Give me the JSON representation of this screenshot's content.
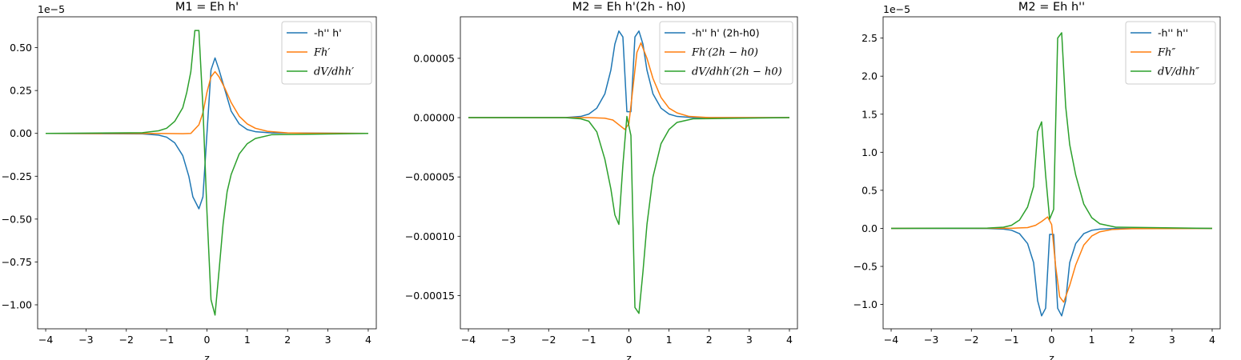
{
  "chart_data": [
    {
      "type": "line",
      "title": "M1 = Eh h'",
      "xlabel": "z",
      "ylabel": "",
      "offset_text": "1e−5",
      "xlim": [
        -4.2,
        4.2
      ],
      "ylim": [
        -1.14,
        0.68
      ],
      "x_ticks": [
        -4,
        -3,
        -2,
        -1,
        0,
        1,
        2,
        3,
        4
      ],
      "x_tick_labels": [
        "−4",
        "−3",
        "−2",
        "−1",
        "0",
        "1",
        "2",
        "3",
        "4"
      ],
      "y_ticks": [
        -1.0,
        -0.75,
        -0.5,
        -0.25,
        0.0,
        0.25,
        0.5
      ],
      "y_tick_labels": [
        "−1.00",
        "−0.75",
        "−0.50",
        "−0.25",
        "0.00",
        "0.25",
        "0.50"
      ],
      "legend_position": "top-right",
      "grid": false,
      "series": [
        {
          "name": "-h'' h'",
          "legend_style": "plain",
          "color": "#1f77b4",
          "x": [
            -4,
            -1.6,
            -1.2,
            -1.0,
            -0.8,
            -0.6,
            -0.45,
            -0.35,
            -0.2,
            -0.1,
            0.0,
            0.1,
            0.2,
            0.3,
            0.45,
            0.6,
            0.8,
            1.0,
            1.2,
            1.6,
            4
          ],
          "y": [
            0,
            -0.003,
            -0.01,
            -0.022,
            -0.055,
            -0.13,
            -0.25,
            -0.37,
            -0.44,
            -0.37,
            0.0,
            0.37,
            0.44,
            0.37,
            0.25,
            0.13,
            0.055,
            0.022,
            0.01,
            0.003,
            0
          ]
        },
        {
          "name": "Fh′",
          "legend_style": "italic",
          "color": "#ff7f0e",
          "x": [
            -4,
            -1.0,
            -0.6,
            -0.4,
            -0.2,
            -0.1,
            0.0,
            0.1,
            0.2,
            0.3,
            0.45,
            0.6,
            0.8,
            1.0,
            1.2,
            1.5,
            2.0,
            2.5,
            4
          ],
          "y": [
            0,
            -0.001,
            -0.002,
            0.0,
            0.05,
            0.12,
            0.24,
            0.33,
            0.36,
            0.33,
            0.26,
            0.18,
            0.1,
            0.055,
            0.03,
            0.012,
            0.003,
            0.001,
            0
          ]
        },
        {
          "name": "dV/dhh′",
          "legend_style": "italic",
          "color": "#2ca02c",
          "x": [
            -4,
            -1.6,
            -1.2,
            -1.0,
            -0.8,
            -0.6,
            -0.5,
            -0.4,
            -0.3,
            -0.2,
            -0.1,
            0.0,
            0.1,
            0.2,
            0.3,
            0.4,
            0.5,
            0.6,
            0.8,
            1.0,
            1.2,
            1.6,
            4
          ],
          "y": [
            0,
            0.004,
            0.015,
            0.03,
            0.07,
            0.15,
            0.24,
            0.36,
            0.6,
            0.6,
            0.15,
            -0.46,
            -0.97,
            -1.06,
            -0.8,
            -0.53,
            -0.34,
            -0.24,
            -0.12,
            -0.06,
            -0.03,
            -0.008,
            0
          ]
        }
      ]
    },
    {
      "type": "line",
      "title": "M2 = Eh h'(2h - h0)",
      "xlabel": "z",
      "ylabel": "",
      "offset_text": "",
      "xlim": [
        -4.2,
        4.2
      ],
      "ylim": [
        -0.000178,
        8.5e-05
      ],
      "x_ticks": [
        -4,
        -3,
        -2,
        -1,
        0,
        1,
        2,
        3,
        4
      ],
      "x_tick_labels": [
        "−4",
        "−3",
        "−2",
        "−1",
        "0",
        "1",
        "2",
        "3",
        "4"
      ],
      "y_ticks": [
        -0.00015,
        -0.0001,
        -5e-05,
        0.0,
        5e-05
      ],
      "y_tick_labels": [
        "−0.00015",
        "−0.00010",
        "−0.00005",
        "0.00000",
        "0.00005"
      ],
      "legend_position": "top-right",
      "grid": false,
      "series": [
        {
          "name": "-h'' h' (2h-h0)",
          "legend_style": "plain",
          "color": "#1f77b4",
          "x": [
            -4,
            -1.6,
            -1.2,
            -1.0,
            -0.8,
            -0.6,
            -0.45,
            -0.35,
            -0.25,
            -0.15,
            -0.05,
            0.05,
            0.15,
            0.25,
            0.35,
            0.45,
            0.6,
            0.8,
            1.0,
            1.2,
            1.6,
            4
          ],
          "y": [
            0,
            0.0,
            1e-06,
            3e-06,
            8e-06,
            2e-05,
            4e-05,
            6.2e-05,
            7.3e-05,
            6.8e-05,
            5e-06,
            5e-06,
            6.8e-05,
            7.3e-05,
            6.2e-05,
            4e-05,
            2e-05,
            8e-06,
            3e-06,
            1e-06,
            0.0,
            0
          ]
        },
        {
          "name": "Fh′(2h − h0)",
          "legend_style": "italic",
          "color": "#ff7f0e",
          "x": [
            -4,
            -1.0,
            -0.6,
            -0.4,
            -0.25,
            -0.1,
            0.0,
            0.1,
            0.2,
            0.3,
            0.45,
            0.6,
            0.8,
            1.0,
            1.2,
            1.5,
            2.0,
            4
          ],
          "y": [
            0,
            0.0,
            -5e-07,
            -2e-06,
            -6e-06,
            -1e-05,
            -5e-06,
            2.5e-05,
            5.5e-05,
            6.3e-05,
            5e-05,
            3.3e-05,
            1.7e-05,
            8e-06,
            4e-06,
            1e-06,
            0.0,
            0
          ]
        },
        {
          "name": "dV/dhh′(2h − h0)",
          "legend_style": "italic",
          "color": "#2ca02c",
          "x": [
            -4,
            -1.6,
            -1.2,
            -1.0,
            -0.8,
            -0.6,
            -0.45,
            -0.35,
            -0.25,
            -0.15,
            -0.05,
            0.05,
            0.15,
            0.25,
            0.35,
            0.45,
            0.6,
            0.8,
            1.0,
            1.2,
            1.6,
            4
          ],
          "y": [
            0,
            0.0,
            -1e-06,
            -3e-06,
            -1.2e-05,
            -3.5e-05,
            -6e-05,
            -8.2e-05,
            -9e-05,
            -4e-05,
            1e-06,
            -1.5e-05,
            -0.00016,
            -0.000165,
            -0.00013,
            -9e-05,
            -5e-05,
            -2.2e-05,
            -1e-05,
            -4e-06,
            -1e-06,
            0
          ]
        }
      ]
    },
    {
      "type": "line",
      "title": "M2 = Eh h''",
      "xlabel": "z",
      "ylabel": "",
      "offset_text": "1e−5",
      "xlim": [
        -4.2,
        4.2
      ],
      "ylim": [
        -1.32,
        2.78
      ],
      "x_ticks": [
        -4,
        -3,
        -2,
        -1,
        0,
        1,
        2,
        3,
        4
      ],
      "x_tick_labels": [
        "−4",
        "−3",
        "−2",
        "−1",
        "0",
        "1",
        "2",
        "3",
        "4"
      ],
      "y_ticks": [
        -1.0,
        -0.5,
        0.0,
        0.5,
        1.0,
        1.5,
        2.0,
        2.5
      ],
      "y_tick_labels": [
        "−1.0",
        "−0.5",
        "0.0",
        "0.5",
        "1.0",
        "1.5",
        "2.0",
        "2.5"
      ],
      "legend_position": "top-right",
      "grid": false,
      "series": [
        {
          "name": "-h'' h''",
          "legend_style": "plain",
          "color": "#1f77b4",
          "x": [
            -4,
            -1.6,
            -1.2,
            -1.0,
            -0.8,
            -0.6,
            -0.45,
            -0.35,
            -0.25,
            -0.15,
            -0.05,
            0.05,
            0.15,
            0.25,
            0.35,
            0.45,
            0.6,
            0.8,
            1.0,
            1.2,
            1.6,
            4
          ],
          "y": [
            0,
            -0.002,
            -0.01,
            -0.025,
            -0.07,
            -0.2,
            -0.45,
            -0.95,
            -1.15,
            -1.05,
            -0.08,
            -0.08,
            -1.05,
            -1.15,
            -0.95,
            -0.45,
            -0.2,
            -0.07,
            -0.025,
            -0.01,
            -0.002,
            0
          ]
        },
        {
          "name": "Fh″",
          "legend_style": "italic",
          "color": "#ff7f0e",
          "x": [
            -4,
            -1.0,
            -0.6,
            -0.4,
            -0.25,
            -0.1,
            0.0,
            0.1,
            0.2,
            0.3,
            0.45,
            0.6,
            0.8,
            1.0,
            1.2,
            1.5,
            2.0,
            4
          ],
          "y": [
            0,
            0.001,
            0.01,
            0.04,
            0.09,
            0.15,
            0.05,
            -0.5,
            -0.9,
            -0.97,
            -0.75,
            -0.48,
            -0.22,
            -0.1,
            -0.045,
            -0.015,
            -0.004,
            0
          ]
        },
        {
          "name": "dV/dhh″",
          "legend_style": "italic",
          "color": "#2ca02c",
          "x": [
            -4,
            -1.6,
            -1.2,
            -1.0,
            -0.8,
            -0.6,
            -0.45,
            -0.35,
            -0.25,
            -0.15,
            -0.05,
            0.05,
            0.15,
            0.25,
            0.35,
            0.45,
            0.6,
            0.8,
            1.0,
            1.2,
            1.6,
            4
          ],
          "y": [
            0,
            0.003,
            0.015,
            0.04,
            0.11,
            0.28,
            0.55,
            1.27,
            1.4,
            0.7,
            0.12,
            0.25,
            2.5,
            2.57,
            1.6,
            1.1,
            0.7,
            0.32,
            0.14,
            0.06,
            0.015,
            0
          ]
        }
      ]
    }
  ]
}
